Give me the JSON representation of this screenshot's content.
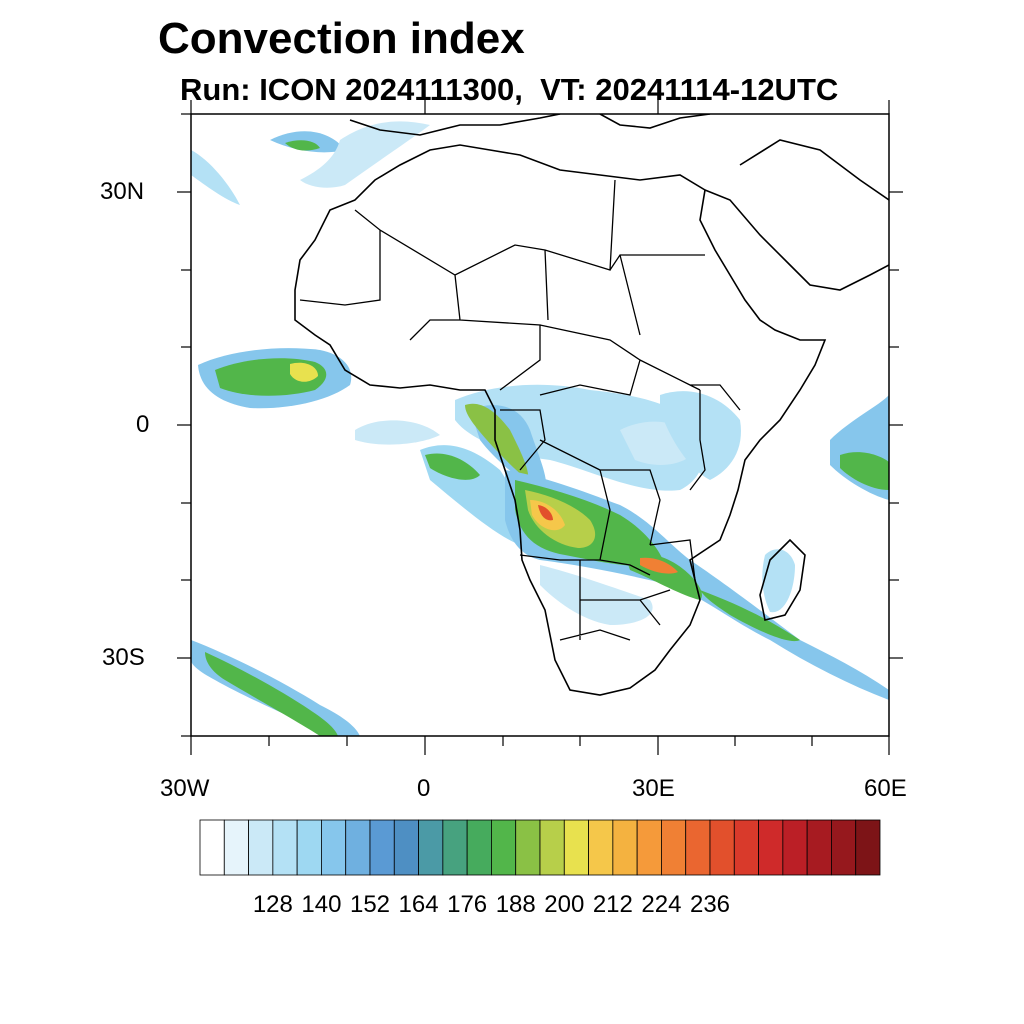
{
  "header": {
    "title": "Convection index",
    "subtitle": "Run: ICON 2024111300,  VT: 20241114-12UTC"
  },
  "map": {
    "projection": "cylindrical equidistant",
    "lon_range": [
      -30,
      60
    ],
    "lat_range": [
      -40,
      40
    ],
    "lat_ticks": [
      "30N",
      "0",
      "30S"
    ],
    "lon_ticks": [
      "30W",
      "0",
      "30E",
      "60E"
    ]
  },
  "colorbar": {
    "tick_labels": [
      "128",
      "140",
      "152",
      "164",
      "176",
      "188",
      "200",
      "212",
      "224",
      "236"
    ],
    "colors": [
      "#ffffff",
      "#e6f4fb",
      "#cbe9f7",
      "#b4e1f5",
      "#9ed8f2",
      "#86c6ec",
      "#6fb0e0",
      "#5a9ad4",
      "#4e8fc3",
      "#4b9aa6",
      "#47a27f",
      "#46ab5d",
      "#52b64a",
      "#8ac145",
      "#b7cf4a",
      "#e8e14e",
      "#f5c74a",
      "#f4b240",
      "#f59a3a",
      "#f08034",
      "#ea6630",
      "#e2502c",
      "#d93a2b",
      "#cf2a2a",
      "#bb1f26",
      "#a71b21",
      "#96181d",
      "#7d1417"
    ]
  }
}
